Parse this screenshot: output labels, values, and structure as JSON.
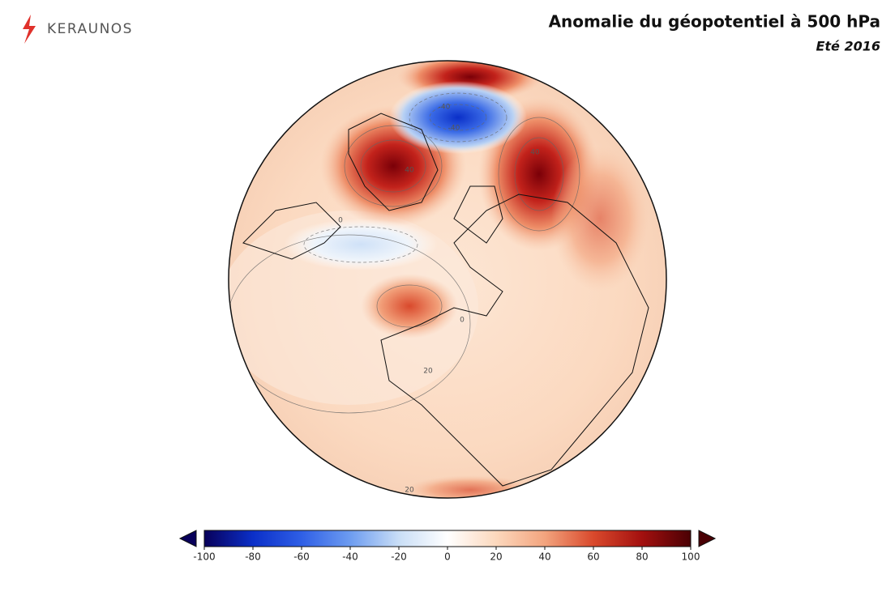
{
  "logo": "KERAUNOS",
  "title": "Anomalie du géopotentiel à 500 hPa",
  "subtitle": "Eté 2016",
  "contour_labels": [
    -40,
    -40,
    40,
    40,
    0,
    20,
    20,
    0
  ],
  "colorbar": {
    "lim": [
      -100,
      100
    ],
    "ticks": [
      -100,
      -80,
      -60,
      -40,
      -20,
      0,
      20,
      40,
      60,
      80,
      100
    ],
    "colors": [
      "#08005a",
      "#0b2fc8",
      "#2f5fe6",
      "#6d9cf0",
      "#c9def6",
      "#ffffff",
      "#fcd8bd",
      "#f3a47e",
      "#d9492c",
      "#a3100f",
      "#4a0004"
    ]
  }
}
